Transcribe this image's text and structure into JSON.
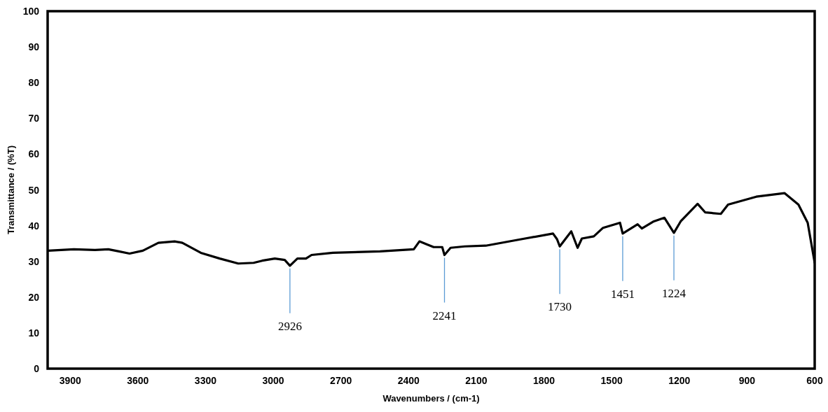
{
  "chart_data": {
    "type": "line",
    "xlabel": "Wavenumbers / (cm-1)",
    "ylabel": "Transmittance / (%T)",
    "xlim": [
      4000,
      600
    ],
    "ylim": [
      0,
      100
    ],
    "xticks": [
      3900,
      3600,
      3300,
      3000,
      2700,
      2400,
      2100,
      1800,
      1500,
      1200,
      900,
      600
    ],
    "yticks": [
      0,
      10,
      20,
      30,
      40,
      50,
      60,
      70,
      80,
      90,
      100
    ],
    "grid": false,
    "marker": "none",
    "line_style": "solid",
    "series": [
      {
        "color": "#000000",
        "x": [
          3997,
          3884,
          3790,
          3731,
          3684,
          3637,
          3578,
          3509,
          3437,
          3403,
          3321,
          3237,
          3155,
          3087,
          3049,
          2993,
          2949,
          2926,
          2893,
          2855,
          2830,
          2736,
          2527,
          2377,
          2352,
          2320,
          2289,
          2251,
          2241,
          2214,
          2151,
          2058,
          1901,
          1760,
          1742,
          1730,
          1679,
          1651,
          1632,
          1579,
          1538,
          1463,
          1451,
          1385,
          1366,
          1313,
          1266,
          1224,
          1194,
          1119,
          1085,
          1016,
          984,
          859,
          734,
          672,
          631,
          600
        ],
        "values": [
          33.0,
          33.4,
          33.2,
          33.4,
          32.8,
          32.2,
          33.0,
          35.2,
          35.6,
          35.2,
          32.4,
          30.8,
          29.4,
          29.6,
          30.2,
          30.8,
          30.4,
          28.8,
          30.8,
          30.8,
          31.8,
          32.4,
          32.8,
          33.4,
          35.6,
          34.8,
          34.0,
          34.0,
          31.8,
          33.8,
          34.2,
          34.4,
          36.2,
          37.8,
          36.2,
          34.2,
          38.4,
          33.8,
          36.4,
          37.0,
          39.4,
          40.8,
          37.8,
          40.4,
          39.2,
          41.2,
          42.2,
          38.0,
          41.2,
          46.1,
          43.7,
          43.3,
          45.9,
          48.1,
          49.1,
          45.9,
          40.8,
          29.6
        ]
      }
    ],
    "annotations": [
      {
        "text": "2926",
        "x": 2926,
        "y": 28.8
      },
      {
        "text": "2241",
        "x": 2241,
        "y": 31.8
      },
      {
        "text": "1730",
        "x": 1730,
        "y": 34.2
      },
      {
        "text": "1451",
        "x": 1451,
        "y": 37.8
      },
      {
        "text": "1224",
        "x": 1224,
        "y": 38.0
      }
    ]
  }
}
